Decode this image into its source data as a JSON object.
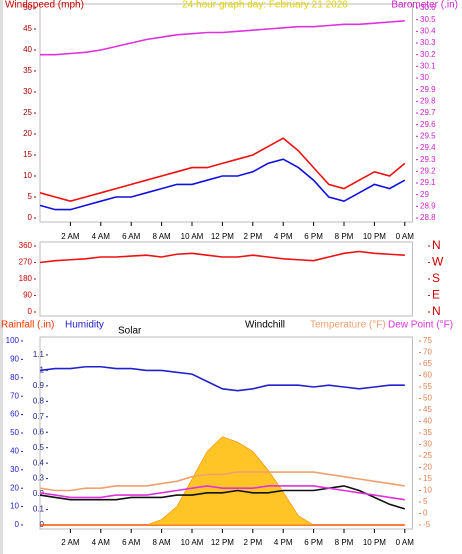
{
  "chart_data": [
    {
      "type": "line",
      "title": "24 hour graph day: February 21 2026",
      "y_label": "Windspeed (mph)",
      "y2_label": "Barometer (.in)",
      "x": [
        0,
        1,
        2,
        3,
        4,
        5,
        6,
        7,
        8,
        9,
        10,
        11,
        12,
        13,
        14,
        15,
        16,
        17,
        18,
        19,
        20,
        21,
        22,
        23,
        24
      ],
      "xlim": [
        0,
        24.5
      ],
      "xticks": [
        {
          "value": 2,
          "label": "2 AM"
        },
        {
          "value": 4,
          "label": "4 AM"
        },
        {
          "value": 6,
          "label": "6 AM"
        },
        {
          "value": 8,
          "label": "8 AM"
        },
        {
          "value": 10,
          "label": "10 AM"
        },
        {
          "value": 12,
          "label": "12 PM"
        },
        {
          "value": 14,
          "label": "2 PM"
        },
        {
          "value": 16,
          "label": "4 PM"
        },
        {
          "value": 18,
          "label": "6 PM"
        },
        {
          "value": 20,
          "label": "8 PM"
        },
        {
          "value": 22,
          "label": "10 PM"
        },
        {
          "value": 24,
          "label": "0 AM"
        }
      ],
      "ylim": [
        0,
        50
      ],
      "yticks": [
        0,
        5,
        10,
        15,
        20,
        25,
        30,
        35,
        40,
        45,
        50
      ],
      "y2lim": [
        28.8,
        30.6
      ],
      "y2ticks": [
        28.8,
        28.9,
        29,
        29.1,
        29.2,
        29.3,
        29.4,
        29.5,
        29.6,
        29.7,
        29.8,
        29.9,
        30,
        30.1,
        30.2,
        30.3,
        30.4,
        30.5,
        30.6
      ],
      "series": [
        {
          "color": "#ee1111",
          "values": [
            6,
            5,
            4,
            5,
            6,
            7,
            8,
            9,
            10,
            11,
            12,
            12,
            13,
            14,
            15,
            17,
            19,
            16,
            12,
            8,
            7,
            9,
            11,
            10,
            13
          ]
        },
        {
          "color": "#1111dd",
          "values": [
            3,
            2,
            2,
            3,
            4,
            5,
            5,
            6,
            7,
            8,
            8,
            9,
            10,
            10,
            11,
            13,
            14,
            12,
            9,
            5,
            4,
            6,
            8,
            7,
            9
          ]
        },
        {
          "color": "#dd33dd",
          "axis": "y2",
          "values": [
            30.2,
            30.2,
            30.21,
            30.22,
            30.24,
            30.27,
            30.3,
            30.33,
            30.35,
            30.37,
            30.38,
            30.39,
            30.39,
            30.4,
            30.41,
            30.42,
            30.43,
            30.44,
            30.44,
            30.45,
            30.46,
            30.46,
            30.47,
            30.48,
            30.49
          ]
        }
      ]
    },
    {
      "type": "line",
      "x": [
        0,
        1,
        2,
        3,
        4,
        5,
        6,
        7,
        8,
        9,
        10,
        11,
        12,
        13,
        14,
        15,
        16,
        17,
        18,
        19,
        20,
        21,
        22,
        23,
        24
      ],
      "xlim": [
        0,
        24.5
      ],
      "ylim": [
        0,
        360
      ],
      "yticks": [
        0,
        90,
        180,
        270,
        360
      ],
      "y2lim": [
        0,
        360
      ],
      "y2ticks": [
        {
          "value": 0,
          "label": "N"
        },
        {
          "value": 90,
          "label": "E"
        },
        {
          "value": 180,
          "label": "S"
        },
        {
          "value": 270,
          "label": "W"
        },
        {
          "value": 360,
          "label": "N"
        }
      ],
      "series": [
        {
          "color": "#ee1111",
          "values": [
            270,
            280,
            285,
            290,
            300,
            300,
            305,
            310,
            300,
            315,
            320,
            310,
            300,
            300,
            310,
            300,
            290,
            285,
            280,
            300,
            320,
            330,
            320,
            315,
            310
          ]
        }
      ]
    },
    {
      "type": "line",
      "x": [
        0,
        1,
        2,
        3,
        4,
        5,
        6,
        7,
        8,
        9,
        10,
        11,
        12,
        13,
        14,
        15,
        16,
        17,
        18,
        19,
        20,
        21,
        22,
        23,
        24
      ],
      "xlim": [
        0,
        24.5
      ],
      "xticks": [
        {
          "value": 2,
          "label": "2 AM"
        },
        {
          "value": 4,
          "label": "4 AM"
        },
        {
          "value": 6,
          "label": "6 AM"
        },
        {
          "value": 8,
          "label": "8 AM"
        },
        {
          "value": 10,
          "label": "10 AM"
        },
        {
          "value": 12,
          "label": "12 PM"
        },
        {
          "value": 14,
          "label": "2 PM"
        },
        {
          "value": 16,
          "label": "4 PM"
        },
        {
          "value": 18,
          "label": "6 PM"
        },
        {
          "value": 20,
          "label": "8 PM"
        },
        {
          "value": 22,
          "label": "10 PM"
        },
        {
          "value": 24,
          "label": "0 AM"
        }
      ],
      "ylim": [
        0,
        100
      ],
      "yticks": [
        0,
        10,
        20,
        30,
        40,
        50,
        60,
        70,
        80,
        90,
        100
      ],
      "y3lim": [
        0,
        1.19
      ],
      "y3ticks": [
        0,
        0.1,
        0.2,
        0.3,
        0.4,
        0.5,
        0.6,
        0.7,
        0.8,
        0.9,
        1,
        1.1
      ],
      "y2lim": [
        -5,
        75
      ],
      "y2ticks": [
        -5,
        0,
        5,
        10,
        15,
        20,
        25,
        30,
        35,
        40,
        45,
        50,
        55,
        60,
        65,
        70,
        75
      ],
      "series": [
        {
          "name": "Rainfall (.in)",
          "color": "#ff3300",
          "axis": "y3",
          "values": [
            0,
            0,
            0,
            0,
            0,
            0,
            0,
            0,
            0,
            0,
            0,
            0,
            0,
            0,
            0,
            0,
            0,
            0,
            0,
            0,
            0,
            0,
            0,
            0,
            0
          ]
        },
        {
          "name": "Humidity",
          "color": "#2222cc",
          "values": [
            84,
            85,
            85,
            86,
            86,
            85,
            85,
            84,
            84,
            83,
            82,
            78,
            74,
            73,
            74,
            76,
            76,
            76,
            75,
            76,
            75,
            74,
            75,
            76,
            76
          ]
        },
        {
          "name": "Solar",
          "color": "#ffbb00",
          "fill": true,
          "values": [
            0,
            0,
            0,
            0,
            0,
            0,
            0,
            0,
            3,
            10,
            25,
            40,
            48,
            45,
            40,
            30,
            18,
            5,
            0,
            0,
            0,
            0,
            0,
            0,
            0
          ]
        },
        {
          "name": "Windchill",
          "color": "#111111",
          "axis": "y2",
          "values": [
            8,
            7,
            6,
            6,
            6,
            6,
            7,
            7,
            7,
            8,
            8,
            9,
            9,
            10,
            9,
            9,
            10,
            10,
            10,
            11,
            12,
            10,
            7,
            4,
            2
          ]
        },
        {
          "name": "Temperature (°F)",
          "color": "#f0a070",
          "axis": "y2",
          "values": [
            11,
            10,
            10,
            11,
            11,
            12,
            12,
            12,
            13,
            14,
            16,
            17,
            17,
            18,
            18,
            18,
            18,
            18,
            18,
            17,
            16,
            15,
            14,
            13,
            12
          ]
        },
        {
          "name": "Dew Point (°F)",
          "color": "#dd33dd",
          "axis": "y2",
          "values": [
            9,
            8,
            7,
            7,
            7,
            8,
            8,
            8,
            9,
            10,
            11,
            12,
            11,
            11,
            11,
            12,
            12,
            12,
            12,
            11,
            10,
            9,
            8,
            7,
            6
          ]
        }
      ]
    }
  ]
}
